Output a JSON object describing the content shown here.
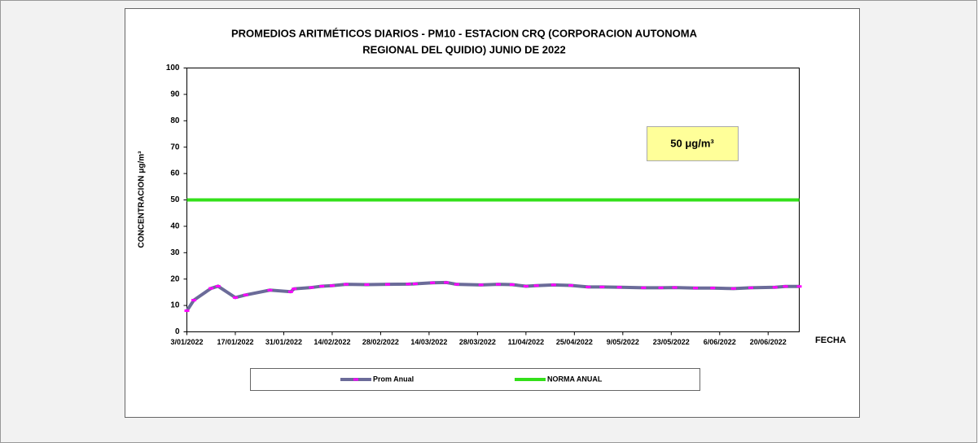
{
  "chart_data": {
    "type": "line",
    "title": [
      "PROMEDIOS ARITMÉTICOS DIARIOS - PM10 -  ESTACION CRQ (CORPORACION AUTONOMA",
      "REGIONAL DEL QUIDIO) JUNIO DE 2022"
    ],
    "xlabel": "FECHA",
    "ylabel": "CONCENTRACION μg/m³",
    "annotation": "50 μg/m³",
    "ylim": [
      0,
      100
    ],
    "yticks": [
      0,
      10,
      20,
      30,
      40,
      50,
      60,
      70,
      80,
      90,
      100
    ],
    "xlim": [
      "2022-01-03",
      "2022-06-29"
    ],
    "xticks": [
      {
        "value": "2022-01-03",
        "label": "3/01/2022"
      },
      {
        "value": "2022-01-17",
        "label": "17/01/2022"
      },
      {
        "value": "2022-01-31",
        "label": "31/01/2022"
      },
      {
        "value": "2022-02-14",
        "label": "14/02/2022"
      },
      {
        "value": "2022-02-28",
        "label": "28/02/2022"
      },
      {
        "value": "2022-03-14",
        "label": "14/03/2022"
      },
      {
        "value": "2022-03-28",
        "label": "28/03/2022"
      },
      {
        "value": "2022-04-11",
        "label": "11/04/2022"
      },
      {
        "value": "2022-04-25",
        "label": "25/04/2022"
      },
      {
        "value": "2022-05-09",
        "label": "9/05/2022"
      },
      {
        "value": "2022-05-23",
        "label": "23/05/2022"
      },
      {
        "value": "2022-06-06",
        "label": "6/06/2022"
      },
      {
        "value": "2022-06-20",
        "label": "20/06/2022"
      }
    ],
    "series": [
      {
        "name": "Prom Anual",
        "color": "#6b6b99",
        "marker_color": "#ff00ff",
        "x": [
          "2022-01-03",
          "2022-01-05",
          "2022-01-10",
          "2022-01-12",
          "2022-01-17",
          "2022-01-20",
          "2022-01-27",
          "2022-02-02",
          "2022-02-03",
          "2022-02-08",
          "2022-02-11",
          "2022-02-14",
          "2022-02-18",
          "2022-02-24",
          "2022-03-02",
          "2022-03-08",
          "2022-03-10",
          "2022-03-15",
          "2022-03-19",
          "2022-03-22",
          "2022-03-29",
          "2022-04-03",
          "2022-04-07",
          "2022-04-11",
          "2022-04-14",
          "2022-04-19",
          "2022-04-24",
          "2022-04-29",
          "2022-05-03",
          "2022-05-08",
          "2022-05-15",
          "2022-05-20",
          "2022-05-24",
          "2022-05-30",
          "2022-06-04",
          "2022-06-10",
          "2022-06-15",
          "2022-06-22",
          "2022-06-25",
          "2022-06-29"
        ],
        "values": [
          8,
          12,
          16.5,
          17.3,
          13,
          14,
          15.8,
          15.2,
          16.3,
          16.8,
          17.3,
          17.5,
          18,
          17.9,
          18,
          18.1,
          18.2,
          18.6,
          18.7,
          18,
          17.8,
          18,
          17.9,
          17.3,
          17.5,
          17.8,
          17.6,
          17,
          17,
          16.9,
          16.7,
          16.7,
          16.8,
          16.6,
          16.6,
          16.4,
          16.7,
          16.9,
          17.2,
          17.2
        ]
      },
      {
        "name": "NORMA ANUAL",
        "color": "#33e01a",
        "x": [
          "2022-01-03",
          "2022-06-29"
        ],
        "values": [
          50,
          50
        ]
      }
    ]
  }
}
